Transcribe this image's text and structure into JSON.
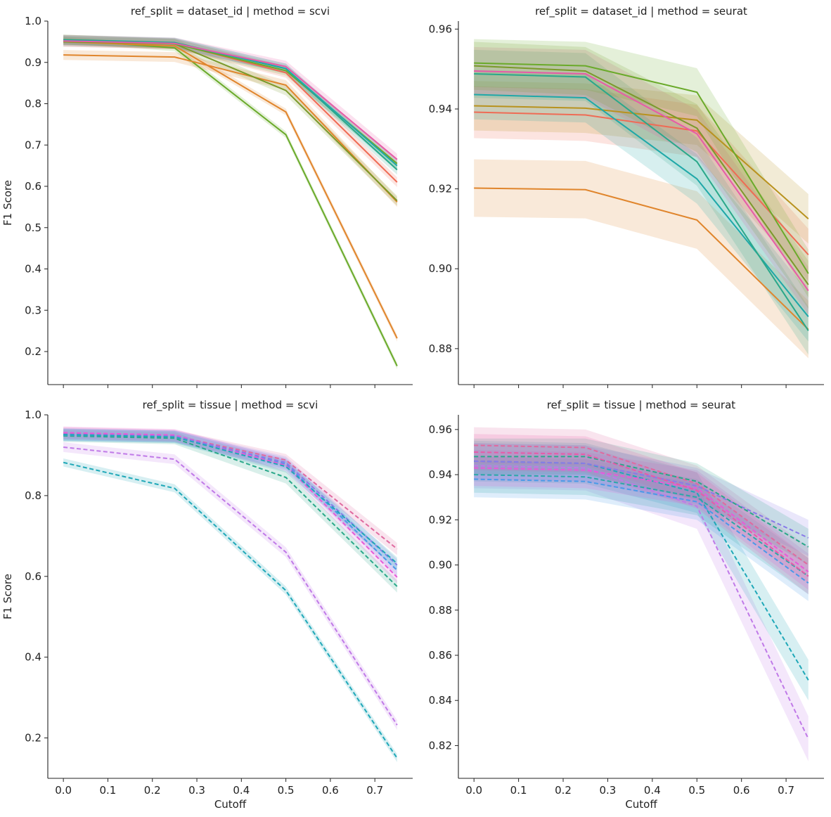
{
  "chart_data": [
    {
      "type": "line",
      "title": "ref_split = dataset_id | method = scvi",
      "xlabel": "",
      "ylabel": "F1 Score",
      "x": [
        0.0,
        0.25,
        0.5,
        0.75
      ],
      "xticks": [
        0.0,
        0.1,
        0.2,
        0.3,
        0.4,
        0.5,
        0.6,
        0.7
      ],
      "show_xtick_labels": false,
      "xlim": [
        -0.035,
        0.785
      ],
      "ylim": [
        0.12,
        1.0
      ],
      "yticks": [
        0.2,
        0.3,
        0.4,
        0.5,
        0.6,
        0.7,
        0.8,
        0.9,
        1.0
      ],
      "ytick_labels": [
        "0.2",
        "0.3",
        "0.4",
        "0.5",
        "0.6",
        "0.7",
        "0.8",
        "0.9",
        "1.0"
      ],
      "series": [
        {
          "color": "#6aaa2a",
          "dash": "solid",
          "values": [
            0.955,
            0.935,
            0.725,
            0.165
          ],
          "band": 0.008
        },
        {
          "color": "#e0852c",
          "dash": "solid",
          "values": [
            0.95,
            0.94,
            0.78,
            0.232
          ],
          "band": 0.008
        },
        {
          "color": "#e0852c",
          "dash": "solid",
          "values": [
            0.918,
            0.913,
            0.845,
            0.562
          ],
          "band": 0.012
        },
        {
          "color": "#7a9a2a",
          "dash": "solid",
          "values": [
            0.95,
            0.945,
            0.832,
            0.565
          ],
          "band": 0.012
        },
        {
          "color": "#ef6b55",
          "dash": "solid",
          "values": [
            0.955,
            0.946,
            0.875,
            0.61
          ],
          "band": 0.012
        },
        {
          "color": "#6aaa2a",
          "dash": "solid",
          "values": [
            0.955,
            0.945,
            0.88,
            0.655
          ],
          "band": 0.012
        },
        {
          "color": "#2aa88a",
          "dash": "solid",
          "values": [
            0.955,
            0.948,
            0.885,
            0.64
          ],
          "band": 0.012
        },
        {
          "color": "#1fa8a8",
          "dash": "solid",
          "values": [
            0.953,
            0.947,
            0.885,
            0.65
          ],
          "band": 0.012
        },
        {
          "color": "#e85aa8",
          "dash": "solid",
          "values": [
            0.952,
            0.946,
            0.89,
            0.665
          ],
          "band": 0.014
        }
      ]
    },
    {
      "type": "line",
      "title": "ref_split = dataset_id | method = seurat",
      "xlabel": "",
      "ylabel": "",
      "x": [
        0.0,
        0.25,
        0.5,
        0.75
      ],
      "xticks": [
        0.0,
        0.1,
        0.2,
        0.3,
        0.4,
        0.5,
        0.6,
        0.7
      ],
      "show_xtick_labels": false,
      "xlim": [
        -0.035,
        0.785
      ],
      "ylim": [
        0.871,
        0.962
      ],
      "yticks": [
        0.88,
        0.9,
        0.92,
        0.94,
        0.96
      ],
      "ytick_labels": [
        "0.88",
        "0.90",
        "0.92",
        "0.94",
        "0.96"
      ],
      "series": [
        {
          "color": "#e0852c",
          "dash": "solid",
          "values": [
            0.9202,
            0.9198,
            0.9122,
            0.8848
          ],
          "band": 0.0072
        },
        {
          "color": "#ef6b55",
          "dash": "solid",
          "values": [
            0.9392,
            0.9385,
            0.9345,
            0.9035
          ],
          "band": 0.0065
        },
        {
          "color": "#b8921e",
          "dash": "solid",
          "values": [
            0.9408,
            0.9402,
            0.9372,
            0.9125
          ],
          "band": 0.0062
        },
        {
          "color": "#1fa8a8",
          "dash": "solid",
          "values": [
            0.9436,
            0.9428,
            0.9225,
            0.888
          ],
          "band": 0.0062
        },
        {
          "color": "#2aa88a",
          "dash": "solid",
          "values": [
            0.9488,
            0.948,
            0.9268,
            0.8845
          ],
          "band": 0.006
        },
        {
          "color": "#e85aa8",
          "dash": "solid",
          "values": [
            0.9495,
            0.9488,
            0.9338,
            0.8945
          ],
          "band": 0.006
        },
        {
          "color": "#7a9a2a",
          "dash": "solid",
          "values": [
            0.9508,
            0.9495,
            0.9352,
            0.896
          ],
          "band": 0.006
        },
        {
          "color": "#6aaa2a",
          "dash": "solid",
          "values": [
            0.9515,
            0.9508,
            0.9442,
            0.8988
          ],
          "band": 0.006
        }
      ]
    },
    {
      "type": "line",
      "title": "ref_split = tissue | method = scvi",
      "xlabel": "Cutoff",
      "ylabel": "F1 Score",
      "x": [
        0.0,
        0.25,
        0.5,
        0.75
      ],
      "xticks": [
        0.0,
        0.1,
        0.2,
        0.3,
        0.4,
        0.5,
        0.6,
        0.7
      ],
      "show_xtick_labels": true,
      "xtick_labels": [
        "0.0",
        "0.1",
        "0.2",
        "0.3",
        "0.4",
        "0.5",
        "0.6",
        "0.7"
      ],
      "xlim": [
        -0.035,
        0.785
      ],
      "ylim": [
        0.1,
        1.0
      ],
      "yticks": [
        0.2,
        0.4,
        0.6,
        0.8,
        1.0
      ],
      "ytick_labels": [
        "0.2",
        "0.4",
        "0.6",
        "0.8",
        "1.0"
      ],
      "series": [
        {
          "color": "#1fa8b8",
          "dash": "dashed",
          "values": [
            0.882,
            0.818,
            0.565,
            0.15
          ],
          "band": 0.01
        },
        {
          "color": "#c07ae8",
          "dash": "dashed",
          "values": [
            0.92,
            0.89,
            0.66,
            0.232
          ],
          "band": 0.012
        },
        {
          "color": "#2aa88a",
          "dash": "dashed",
          "values": [
            0.948,
            0.942,
            0.845,
            0.575
          ],
          "band": 0.015
        },
        {
          "color": "#e06aa0",
          "dash": "dashed",
          "values": [
            0.955,
            0.948,
            0.888,
            0.668
          ],
          "band": 0.015
        },
        {
          "color": "#4a9ae8",
          "dash": "dashed",
          "values": [
            0.95,
            0.946,
            0.878,
            0.615
          ],
          "band": 0.015
        },
        {
          "color": "#e85ad8",
          "dash": "dashed",
          "values": [
            0.956,
            0.95,
            0.875,
            0.598
          ],
          "band": 0.015
        },
        {
          "color": "#8a7ae8",
          "dash": "dashed",
          "values": [
            0.952,
            0.947,
            0.882,
            0.628
          ],
          "band": 0.015
        },
        {
          "color": "#1fa8b8",
          "dash": "dashed",
          "values": [
            0.951,
            0.945,
            0.872,
            0.632
          ],
          "band": 0.015
        }
      ]
    },
    {
      "type": "line",
      "title": "ref_split = tissue | method = seurat",
      "xlabel": "Cutoff",
      "ylabel": "",
      "x": [
        0.0,
        0.25,
        0.5,
        0.75
      ],
      "xticks": [
        0.0,
        0.1,
        0.2,
        0.3,
        0.4,
        0.5,
        0.6,
        0.7
      ],
      "show_xtick_labels": true,
      "xtick_labels": [
        "0.0",
        "0.1",
        "0.2",
        "0.3",
        "0.4",
        "0.5",
        "0.6",
        "0.7"
      ],
      "xlim": [
        -0.035,
        0.785
      ],
      "ylim": [
        0.8055,
        0.9665
      ],
      "yticks": [
        0.82,
        0.84,
        0.86,
        0.88,
        0.9,
        0.92,
        0.94,
        0.96
      ],
      "ytick_labels": [
        "0.82",
        "0.84",
        "0.86",
        "0.88",
        "0.90",
        "0.92",
        "0.94",
        "0.96"
      ],
      "series": [
        {
          "color": "#c07ae8",
          "dash": "dashed",
          "values": [
            0.944,
            0.943,
            0.926,
            0.823
          ],
          "band": 0.01
        },
        {
          "color": "#1fa8b8",
          "dash": "dashed",
          "values": [
            0.946,
            0.945,
            0.932,
            0.849
          ],
          "band": 0.009
        },
        {
          "color": "#4a9ae8",
          "dash": "dashed",
          "values": [
            0.938,
            0.937,
            0.928,
            0.892
          ],
          "band": 0.008
        },
        {
          "color": "#2aa8a8",
          "dash": "dashed",
          "values": [
            0.94,
            0.939,
            0.93,
            0.895
          ],
          "band": 0.008
        },
        {
          "color": "#e85ad8",
          "dash": "dashed",
          "values": [
            0.943,
            0.942,
            0.934,
            0.897
          ],
          "band": 0.008
        },
        {
          "color": "#e06aa0",
          "dash": "dashed",
          "values": [
            0.953,
            0.952,
            0.936,
            0.9
          ],
          "band": 0.008
        },
        {
          "color": "#8a7ae8",
          "dash": "dashed",
          "values": [
            0.946,
            0.945,
            0.935,
            0.912
          ],
          "band": 0.008
        },
        {
          "color": "#2aa88a",
          "dash": "dashed",
          "values": [
            0.948,
            0.948,
            0.937,
            0.908
          ],
          "band": 0.008
        },
        {
          "color": "#e85aa8",
          "dash": "dashed",
          "values": [
            0.95,
            0.949,
            0.933,
            0.895
          ],
          "band": 0.008
        }
      ]
    }
  ]
}
